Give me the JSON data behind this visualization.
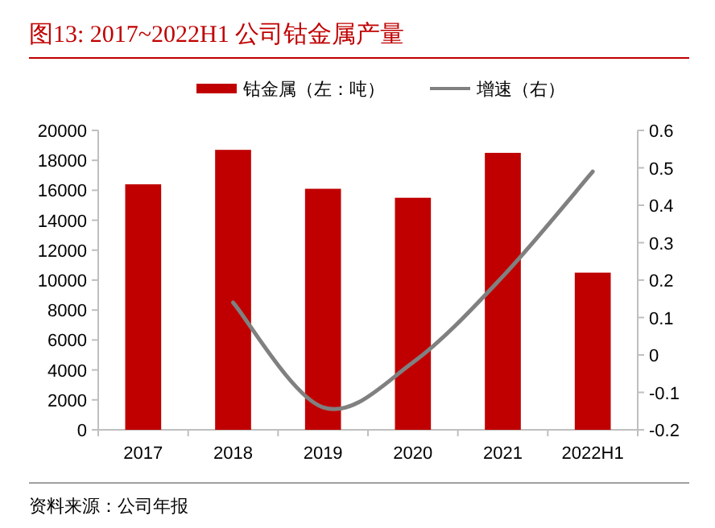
{
  "chart_data": {
    "type": "bar",
    "title": "图13:   2017~2022H1 公司钴金属产量",
    "categories": [
      "2017",
      "2018",
      "2019",
      "2020",
      "2021",
      "2022H1"
    ],
    "series": [
      {
        "name": "钴金属（左：吨）",
        "color": "#c00000",
        "values": [
          16400,
          18700,
          16100,
          15500,
          18500,
          10500
        ]
      },
      {
        "name": "增速（右）",
        "type": "line",
        "axis": "y2",
        "color": "#808080",
        "values": [
          null,
          0.14,
          -0.14,
          -0.02,
          0.21,
          0.49
        ]
      }
    ],
    "ylim": [
      0,
      20000
    ],
    "yticks": [
      0,
      2000,
      4000,
      6000,
      8000,
      10000,
      12000,
      14000,
      16000,
      18000,
      20000
    ],
    "y2lim": [
      -0.2,
      0.6
    ],
    "y2ticks": [
      -0.2,
      -0.1,
      0,
      0.1,
      0.2,
      0.3,
      0.4,
      0.5,
      0.6
    ],
    "legend": "top",
    "grid": false,
    "annotations": [
      "资料来源：公司年报"
    ]
  }
}
